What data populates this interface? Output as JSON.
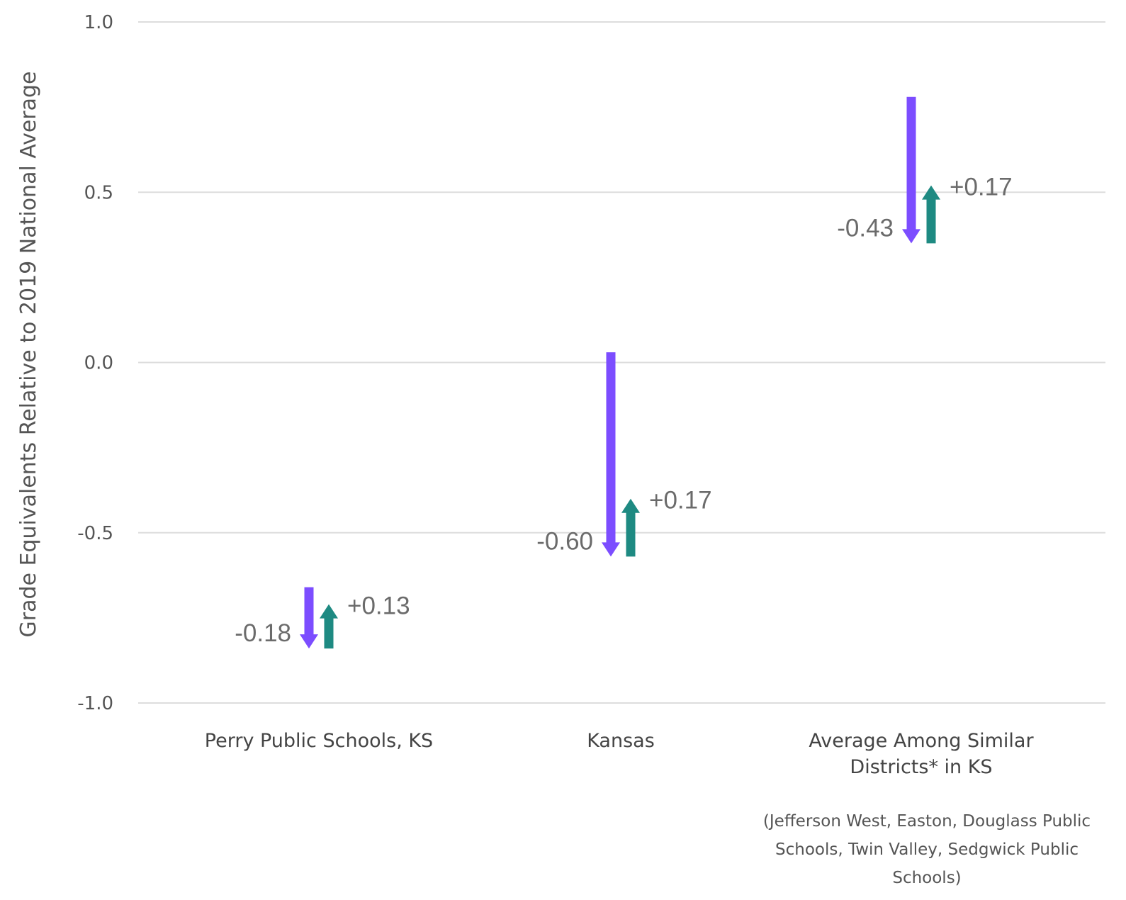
{
  "chart_data": {
    "type": "arrow-change",
    "ylabel": "Grade Equivalents Relative to 2019 National Average",
    "ylim": [
      -1.0,
      1.0
    ],
    "yticks": [
      {
        "value": 1.0,
        "label": "1.0"
      },
      {
        "value": 0.5,
        "label": "0.5"
      },
      {
        "value": 0.0,
        "label": "0.0"
      },
      {
        "value": -0.5,
        "label": "-0.5"
      },
      {
        "value": -1.0,
        "label": "-1.0"
      }
    ],
    "grid": true,
    "colors": {
      "decline": "#7c4dff",
      "recovery": "#1e8a82"
    },
    "categories": [
      {
        "label_lines": [
          "Perry Public Schools, KS"
        ],
        "note_lines": [],
        "decline": {
          "start": -0.66,
          "end": -0.84,
          "label": "-0.18"
        },
        "recovery": {
          "start": -0.84,
          "end": -0.71,
          "label": "+0.13"
        }
      },
      {
        "label_lines": [
          "Kansas"
        ],
        "note_lines": [],
        "decline": {
          "start": 0.03,
          "end": -0.57,
          "label": "-0.60"
        },
        "recovery": {
          "start": -0.57,
          "end": -0.4,
          "label": "+0.17"
        }
      },
      {
        "label_lines": [
          "Average Among Similar",
          "Districts* in KS"
        ],
        "note_lines": [
          "(Jefferson West, Easton, Douglass Public",
          "Schools, Twin Valley, Sedgwick Public",
          "Schools)"
        ],
        "decline": {
          "start": 0.78,
          "end": 0.35,
          "label": "-0.43"
        },
        "recovery": {
          "start": 0.35,
          "end": 0.52,
          "label": "+0.17"
        }
      }
    ]
  }
}
